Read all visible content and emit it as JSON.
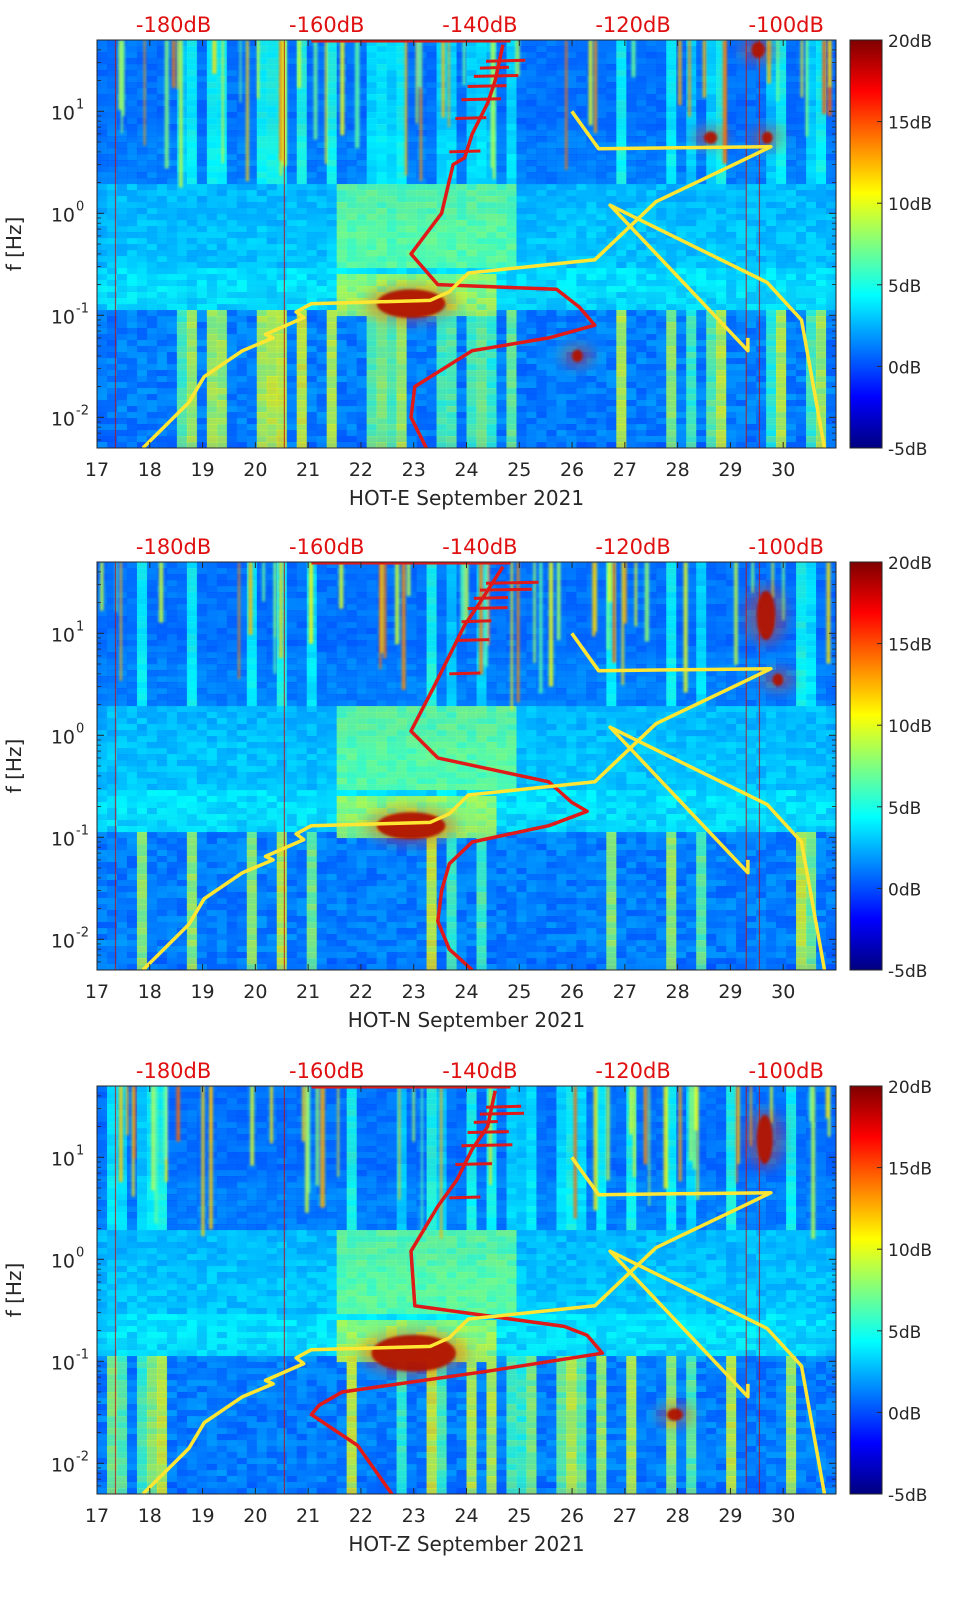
{
  "colors": {
    "noise_model": "#ffe633",
    "psd_curve": "#e01919",
    "top_axis_text": "#e01010",
    "colormap": [
      "#00007f",
      "#0000ff",
      "#00ffff",
      "#ffff00",
      "#ff0000",
      "#7f0000"
    ]
  },
  "chart_data": [
    {
      "type": "heatmap",
      "xlabel": "HOT-E September 2021",
      "ylabel": "f [Hz]",
      "x_ticks": [
        17,
        18,
        19,
        20,
        21,
        22,
        23,
        24,
        25,
        26,
        27,
        28,
        29,
        30
      ],
      "x_tick_labels": [
        "17",
        "18",
        "19",
        "20",
        "21",
        "22",
        "23",
        "24",
        "25",
        "26",
        "27",
        "28",
        "29",
        "30"
      ],
      "xlim": [
        17,
        31
      ],
      "ylim": [
        0.005,
        50
      ],
      "y_scale": "log",
      "y_ticks": [
        0.01,
        0.1,
        1,
        10
      ],
      "y_tick_labels": [
        {
          "base": "10",
          "exp": "-2"
        },
        {
          "base": "10",
          "exp": "-1"
        },
        {
          "base": "10",
          "exp": "0"
        },
        {
          "base": "10",
          "exp": "1"
        }
      ],
      "top_axis_ticks": [
        "-180dB",
        "-160dB",
        "-140dB",
        "-120dB",
        "-100dB"
      ],
      "top_axis_dB_range": [
        -190,
        -93.5
      ],
      "colorbar_ticks": [
        "20dB",
        "15dB",
        "10dB",
        "5dB",
        "0dB",
        "-5dB"
      ],
      "color_limits": [
        -5,
        20
      ],
      "yellow_curve": {
        "dB": [
          -184,
          -178,
          -176,
          -171,
          -167,
          -168,
          -163,
          -164,
          -162,
          -146.5,
          -144,
          -141.5,
          -125,
          -117,
          -105,
          -102,
          -124.5,
          -128,
          -105,
          -105,
          -123,
          -102.5,
          -98,
          -95
        ],
        "f": [
          0.005,
          0.014,
          0.025,
          0.045,
          0.06,
          0.065,
          0.095,
          0.108,
          0.13,
          0.14,
          0.17,
          0.26,
          0.35,
          1.3,
          3.5,
          4.5,
          4.3,
          10,
          0.06,
          0.045,
          1.2,
          0.21,
          0.09,
          0.005
        ]
      },
      "red_curve": {
        "dB": [
          -147,
          -149,
          -148.5,
          -141,
          -131,
          -125,
          -127,
          -130,
          -145.5,
          -149,
          -145,
          -143.5,
          -142,
          -141,
          -139,
          -138,
          -137
        ],
        "f": [
          0.005,
          0.01,
          0.02,
          0.045,
          0.06,
          0.08,
          0.12,
          0.18,
          0.2,
          0.4,
          1,
          3,
          3.5,
          6,
          12,
          20,
          45
        ]
      },
      "hot_spots": [
        {
          "x": 22.3,
          "f": 0.13,
          "w": 1.3,
          "h": 0.35
        },
        {
          "x": 29.4,
          "f": 40,
          "w": 0.25,
          "h": 0.2
        },
        {
          "x": 28.5,
          "f": 5.5,
          "w": 0.25,
          "h": 0.15
        },
        {
          "x": 29.6,
          "f": 5.5,
          "w": 0.2,
          "h": 0.15
        },
        {
          "x": 26.0,
          "f": 0.04,
          "w": 0.2,
          "h": 0.15
        }
      ]
    },
    {
      "type": "heatmap",
      "xlabel": "HOT-N September 2021",
      "ylabel": "f [Hz]",
      "x_ticks": [
        17,
        18,
        19,
        20,
        21,
        22,
        23,
        24,
        25,
        26,
        27,
        28,
        29,
        30
      ],
      "x_tick_labels": [
        "17",
        "18",
        "19",
        "20",
        "21",
        "22",
        "23",
        "24",
        "25",
        "26",
        "27",
        "28",
        "29",
        "30"
      ],
      "xlim": [
        17,
        31
      ],
      "ylim": [
        0.005,
        50
      ],
      "y_scale": "log",
      "y_ticks": [
        0.01,
        0.1,
        1,
        10
      ],
      "y_tick_labels": [
        {
          "base": "10",
          "exp": "-2"
        },
        {
          "base": "10",
          "exp": "-1"
        },
        {
          "base": "10",
          "exp": "0"
        },
        {
          "base": "10",
          "exp": "1"
        }
      ],
      "top_axis_ticks": [
        "-180dB",
        "-160dB",
        "-140dB",
        "-120dB",
        "-100dB"
      ],
      "top_axis_dB_range": [
        -190,
        -93.5
      ],
      "colorbar_ticks": [
        "20dB",
        "15dB",
        "10dB",
        "5dB",
        "0dB",
        "-5dB"
      ],
      "color_limits": [
        -5,
        20
      ],
      "yellow_curve": {
        "dB": [
          -184,
          -178,
          -176,
          -171,
          -167,
          -168,
          -163,
          -164,
          -162,
          -146.5,
          -144,
          -141.5,
          -125,
          -117,
          -105,
          -102,
          -124.5,
          -128,
          -105,
          -105,
          -123,
          -102.5,
          -98,
          -95
        ],
        "f": [
          0.005,
          0.014,
          0.025,
          0.045,
          0.06,
          0.065,
          0.095,
          0.108,
          0.13,
          0.14,
          0.17,
          0.26,
          0.35,
          1.3,
          3.5,
          4.5,
          4.3,
          10,
          0.06,
          0.045,
          1.2,
          0.21,
          0.09,
          0.005
        ]
      },
      "red_curve": {
        "dB": [
          -141,
          -144,
          -145.5,
          -145,
          -144,
          -141,
          -131,
          -126,
          -128,
          -131,
          -145.5,
          -149,
          -146,
          -144,
          -142,
          -140,
          -137
        ],
        "f": [
          0.005,
          0.008,
          0.015,
          0.03,
          0.055,
          0.09,
          0.13,
          0.18,
          0.22,
          0.35,
          0.6,
          1.1,
          3.0,
          6,
          12,
          20,
          45
        ]
      },
      "hot_spots": [
        {
          "x": 22.3,
          "f": 0.13,
          "w": 1.3,
          "h": 0.33
        },
        {
          "x": 29.5,
          "f": 15,
          "w": 0.35,
          "h": 0.6
        },
        {
          "x": 29.8,
          "f": 3.5,
          "w": 0.2,
          "h": 0.15
        }
      ]
    },
    {
      "type": "heatmap",
      "xlabel": "HOT-Z September 2021",
      "ylabel": "f [Hz]",
      "x_ticks": [
        17,
        18,
        19,
        20,
        21,
        22,
        23,
        24,
        25,
        26,
        27,
        28,
        29,
        30
      ],
      "x_tick_labels": [
        "17",
        "18",
        "19",
        "20",
        "21",
        "22",
        "23",
        "24",
        "25",
        "26",
        "27",
        "28",
        "29",
        "30"
      ],
      "xlim": [
        17,
        31
      ],
      "ylim": [
        0.005,
        50
      ],
      "y_scale": "log",
      "y_ticks": [
        0.01,
        0.1,
        1,
        10
      ],
      "y_tick_labels": [
        {
          "base": "10",
          "exp": "-2"
        },
        {
          "base": "10",
          "exp": "-1"
        },
        {
          "base": "10",
          "exp": "0"
        },
        {
          "base": "10",
          "exp": "1"
        }
      ],
      "top_axis_ticks": [
        "-180dB",
        "-160dB",
        "-140dB",
        "-120dB",
        "-100dB"
      ],
      "top_axis_dB_range": [
        -190,
        -93.5
      ],
      "colorbar_ticks": [
        "20dB",
        "15dB",
        "10dB",
        "5dB",
        "0dB",
        "-5dB"
      ],
      "color_limits": [
        -5,
        20
      ],
      "yellow_curve": {
        "dB": [
          -184,
          -178,
          -176,
          -171,
          -167,
          -168,
          -163,
          -164,
          -162,
          -146.5,
          -144,
          -141.5,
          -125,
          -117,
          -105,
          -102,
          -124.5,
          -128,
          -105,
          -105,
          -123,
          -102.5,
          -98,
          -95
        ],
        "f": [
          0.005,
          0.014,
          0.025,
          0.045,
          0.06,
          0.065,
          0.095,
          0.108,
          0.13,
          0.14,
          0.17,
          0.26,
          0.35,
          1.3,
          3.5,
          4.5,
          4.3,
          10,
          0.06,
          0.045,
          1.2,
          0.21,
          0.09,
          0.005
        ]
      },
      "red_curve": {
        "dB": [
          -151.5,
          -156,
          -162,
          -161,
          -158,
          -139,
          -124,
          -126,
          -129,
          -148.5,
          -149,
          -145.5,
          -143,
          -141,
          -139,
          -138
        ],
        "f": [
          0.005,
          0.015,
          0.03,
          0.037,
          0.05,
          0.08,
          0.12,
          0.18,
          0.22,
          0.35,
          1.2,
          3.3,
          6,
          12,
          20,
          45
        ]
      },
      "hot_spots": [
        {
          "x": 22.2,
          "f": 0.12,
          "w": 1.6,
          "h": 0.45
        },
        {
          "x": 29.5,
          "f": 15,
          "w": 0.3,
          "h": 0.6
        },
        {
          "x": 27.8,
          "f": 0.03,
          "w": 0.3,
          "h": 0.15
        }
      ]
    }
  ]
}
